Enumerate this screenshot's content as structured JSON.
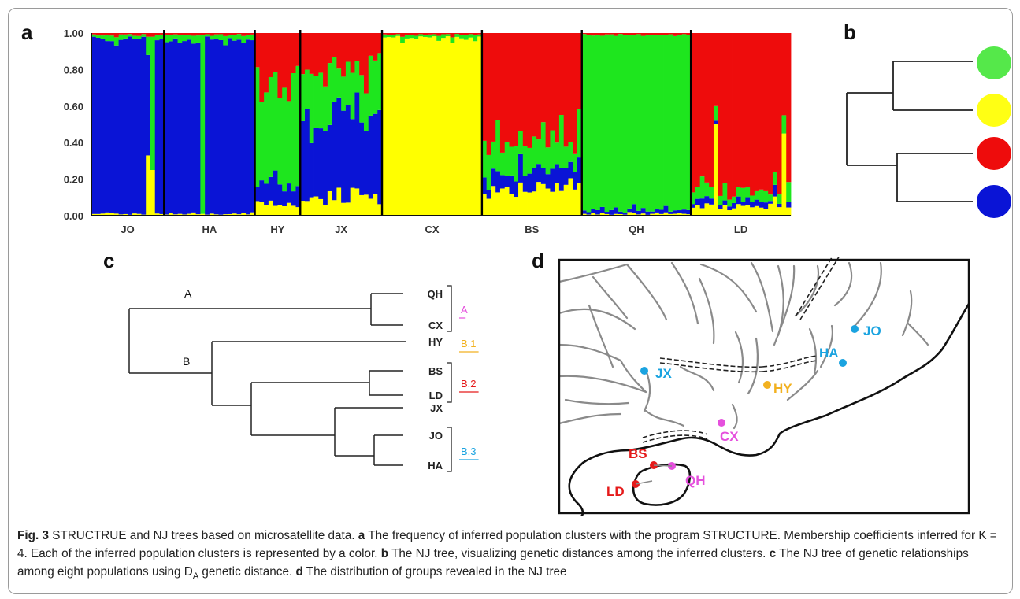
{
  "panels": {
    "a": "a",
    "b": "b",
    "c": "c",
    "d": "d"
  },
  "colors": {
    "blue": "#0a14d6",
    "red": "#ee0c0c",
    "green": "#1ee61e",
    "yellow": "#ffff00",
    "lightgreen": "#55e84a",
    "yellow_circle": "#ffff14",
    "river": "#8a8a8a",
    "cyan_label": "#1aa3e0",
    "magenta_label": "#e550dd",
    "orange_label": "#f2b120",
    "red_label": "#e51a1a"
  },
  "chart_data": {
    "type": "bar",
    "subtype": "stacked-admixture",
    "y_ticks": [
      "1.00",
      "0.80",
      "0.60",
      "0.40",
      "0.20",
      "0.00"
    ],
    "ylim": [
      0,
      1
    ],
    "cluster_order": [
      "yellow",
      "blue",
      "green",
      "red"
    ],
    "populations": [
      {
        "name": "JO",
        "n": 16,
        "yellow": 0.01,
        "blue": 0.96,
        "green": 0.02,
        "red": 0.01,
        "special": [
          [
            12,
            0.33,
            0.55,
            0.1,
            0.02
          ],
          [
            13,
            0.25,
            0.0,
            0.73,
            0.02
          ]
        ]
      },
      {
        "name": "HA",
        "n": 20,
        "yellow": 0.01,
        "blue": 0.95,
        "green": 0.03,
        "red": 0.01,
        "special": [
          [
            8,
            0.01,
            0.0,
            0.98,
            0.01
          ]
        ]
      },
      {
        "name": "HY",
        "n": 10,
        "yellow": 0.06,
        "blue": 0.1,
        "green": 0.6,
        "red": 0.24
      },
      {
        "name": "JX",
        "n": 18,
        "yellow": 0.1,
        "blue": 0.45,
        "green": 0.25,
        "red": 0.2
      },
      {
        "name": "CX",
        "n": 22,
        "yellow": 0.97,
        "blue": 0.0,
        "green": 0.02,
        "red": 0.01
      },
      {
        "name": "BS",
        "n": 22,
        "yellow": 0.16,
        "blue": 0.1,
        "green": 0.18,
        "red": 0.56
      },
      {
        "name": "QH",
        "n": 24,
        "yellow": 0.01,
        "blue": 0.02,
        "green": 0.96,
        "red": 0.01
      },
      {
        "name": "LD",
        "n": 22,
        "yellow": 0.05,
        "blue": 0.03,
        "green": 0.06,
        "red": 0.86,
        "special": [
          [
            5,
            0.5,
            0.02,
            0.08,
            0.4
          ],
          [
            20,
            0.45,
            0.0,
            0.1,
            0.45
          ]
        ]
      }
    ]
  },
  "tree_b": {
    "leaves": [
      "green",
      "yellow",
      "red",
      "blue"
    ]
  },
  "tree_c": {
    "branch_labels": {
      "A": "A",
      "B": "B"
    },
    "leaves": [
      "QH",
      "CX",
      "HY",
      "BS",
      "LD",
      "JX",
      "JO",
      "HA"
    ],
    "groups": [
      {
        "label": "A",
        "color": "#e550dd"
      },
      {
        "label": "B.1",
        "color": "#f2b120"
      },
      {
        "label": "B.2",
        "color": "#e51a1a"
      },
      {
        "label": "B.3",
        "color": "#1aa3e0"
      }
    ]
  },
  "map_d": {
    "sites": [
      {
        "name": "JO",
        "color": "#1aa3e0"
      },
      {
        "name": "HA",
        "color": "#1aa3e0"
      },
      {
        "name": "JX",
        "color": "#1aa3e0"
      },
      {
        "name": "HY",
        "color": "#f2b120"
      },
      {
        "name": "CX",
        "color": "#e550dd"
      },
      {
        "name": "BS",
        "color": "#e51a1a"
      },
      {
        "name": "QH",
        "color": "#e550dd"
      },
      {
        "name": "LD",
        "color": "#e51a1a"
      }
    ]
  },
  "caption": {
    "fig_label": "Fig. 3",
    "title": " STRUCTRUE and NJ trees based on microsatellite data. ",
    "a_label": "a",
    "a_text": " The frequency of inferred population clusters with the program STRUCTURE. Membership coefficients inferred for K = 4. Each of the inferred population clusters is represented by a color. ",
    "b_label": "b",
    "b_text": " The NJ tree, visualizing genetic distances among the inferred clusters. ",
    "c_label": "c",
    "c_text": " The NJ tree of genetic relationships among eight populations using D",
    "c_sub": "A",
    "c_text2": " genetic distance. ",
    "d_label": "d",
    "d_text": " The distribution of groups revealed in the NJ tree"
  }
}
